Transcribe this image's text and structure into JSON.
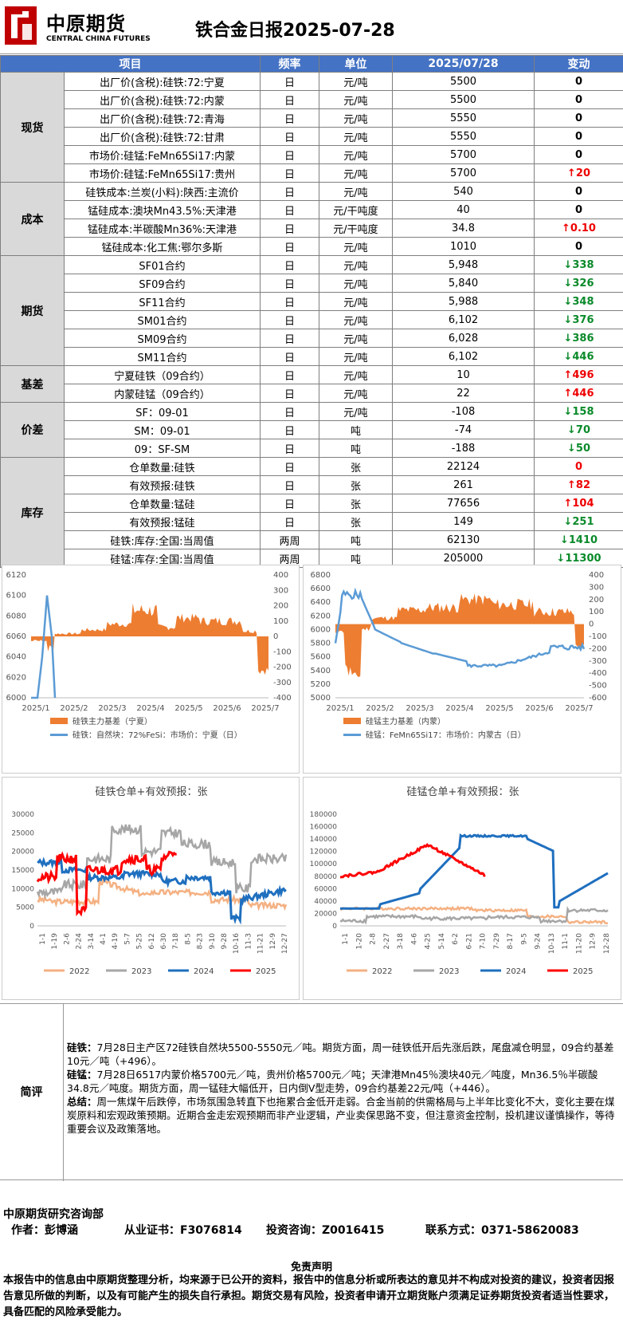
{
  "header": {
    "brand": "中原期货",
    "brand_en": "CENTRAL CHINA FUTURES",
    "title": "铁合金日报2025-07-28"
  },
  "table": {
    "headers": [
      "项目",
      "频率",
      "单位",
      "2025/07/28",
      "变动"
    ],
    "groups": [
      {
        "cat": "现货",
        "rows": [
          {
            "item": "出厂价(含税):硅铁:72:宁夏",
            "freq": "日",
            "unit": "元/吨",
            "value": "5500",
            "change": "0",
            "dir": "zero"
          },
          {
            "item": "出厂价(含税):硅铁:72:内蒙",
            "freq": "日",
            "unit": "元/吨",
            "value": "5500",
            "change": "0",
            "dir": "zero"
          },
          {
            "item": "出厂价(含税):硅铁:72:青海",
            "freq": "日",
            "unit": "元/吨",
            "value": "5550",
            "change": "0",
            "dir": "zero"
          },
          {
            "item": "出厂价(含税):硅铁:72:甘肃",
            "freq": "日",
            "unit": "元/吨",
            "value": "5550",
            "change": "0",
            "dir": "zero"
          },
          {
            "item": "市场价:硅锰:FeMn65Si17:内蒙",
            "freq": "日",
            "unit": "元/吨",
            "value": "5700",
            "change": "0",
            "dir": "zero"
          },
          {
            "item": "市场价:硅锰:FeMn65Si17:贵州",
            "freq": "日",
            "unit": "元/吨",
            "value": "5700",
            "change": "20",
            "dir": "up"
          }
        ]
      },
      {
        "cat": "成本",
        "rows": [
          {
            "item": "硅铁成本:兰炭(小料):陕西:主流价",
            "freq": "日",
            "unit": "元/吨",
            "value": "540",
            "change": "0",
            "dir": "zero"
          },
          {
            "item": "锰硅成本:澳块Mn43.5%:天津港",
            "freq": "日",
            "unit": "元/干吨度",
            "value": "40",
            "change": "0",
            "dir": "zero"
          },
          {
            "item": "锰硅成本:半碳酸Mn36%:天津港",
            "freq": "日",
            "unit": "元/干吨度",
            "value": "34.8",
            "change": "0.10",
            "dir": "up"
          },
          {
            "item": "锰硅成本:化工焦:鄂尔多斯",
            "freq": "日",
            "unit": "元/吨",
            "value": "1010",
            "change": "0",
            "dir": "zero"
          }
        ]
      },
      {
        "cat": "期货",
        "rows": [
          {
            "item": "SF01合约",
            "freq": "日",
            "unit": "元/吨",
            "value": "5,948",
            "change": "338",
            "dir": "dn"
          },
          {
            "item": "SF09合约",
            "freq": "日",
            "unit": "元/吨",
            "value": "5,840",
            "change": "326",
            "dir": "dn"
          },
          {
            "item": "SF11合约",
            "freq": "日",
            "unit": "元/吨",
            "value": "5,988",
            "change": "348",
            "dir": "dn"
          },
          {
            "item": "SM01合约",
            "freq": "日",
            "unit": "元/吨",
            "value": "6,102",
            "change": "376",
            "dir": "dn"
          },
          {
            "item": "SM09合约",
            "freq": "日",
            "unit": "元/吨",
            "value": "6,028",
            "change": "386",
            "dir": "dn"
          },
          {
            "item": "SM11合约",
            "freq": "日",
            "unit": "元/吨",
            "value": "6,102",
            "change": "446",
            "dir": "dn"
          }
        ]
      },
      {
        "cat": "基差",
        "rows": [
          {
            "item": "宁夏硅铁（09合约）",
            "freq": "日",
            "unit": "元/吨",
            "value": "10",
            "change": "496",
            "dir": "up"
          },
          {
            "item": "内蒙硅锰（09合约）",
            "freq": "日",
            "unit": "元/吨",
            "value": "22",
            "change": "446",
            "dir": "up"
          }
        ]
      },
      {
        "cat": "价差",
        "rows": [
          {
            "item": "SF：09-01",
            "freq": "日",
            "unit": "元/吨",
            "value": "-108",
            "change": "158",
            "dir": "dn"
          },
          {
            "item": "SM：09-01",
            "freq": "日",
            "unit": "吨",
            "value": "-74",
            "change": "70",
            "dir": "dn"
          },
          {
            "item": "09：SF-SM",
            "freq": "日",
            "unit": "吨",
            "value": "-188",
            "change": "50",
            "dir": "dn"
          }
        ]
      },
      {
        "cat": "库存",
        "rows": [
          {
            "item": "仓单数量:硅铁",
            "freq": "日",
            "unit": "张",
            "value": "22124",
            "change": "0",
            "dir": "zero-red"
          },
          {
            "item": "有效预报:硅铁",
            "freq": "日",
            "unit": "张",
            "value": "261",
            "change": "82",
            "dir": "up"
          },
          {
            "item": "仓单数量:锰硅",
            "freq": "日",
            "unit": "张",
            "value": "77656",
            "change": "104",
            "dir": "up"
          },
          {
            "item": "有效预报:锰硅",
            "freq": "日",
            "unit": "张",
            "value": "149",
            "change": "251",
            "dir": "dn"
          },
          {
            "item": "硅铁:库存:全国:当周值",
            "freq": "两周",
            "unit": "吨",
            "value": "62130",
            "change": "1410",
            "dir": "dn"
          },
          {
            "item": "硅锰:库存:全国:当周值",
            "freq": "两周",
            "unit": "吨",
            "value": "205000",
            "change": "11300",
            "dir": "dn"
          }
        ]
      }
    ]
  },
  "chart_data": [
    {
      "type": "area+line",
      "left_axis_ticks": [
        "6000",
        "6020",
        "6040",
        "6060",
        "6080",
        "6100",
        "6120"
      ],
      "right_axis_ticks": [
        "-400",
        "-300",
        "-200",
        "-100",
        "0",
        "100",
        "200",
        "300",
        "400"
      ],
      "x_ticks": [
        "2025/1",
        "2025/2",
        "2025/3",
        "2025/4",
        "2025/5",
        "2025/6",
        "2025/7"
      ],
      "legend": [
        "硅铁主力基差（宁夏）",
        "硅铁：自然块：72%FeSi：市场价：宁夏（日）"
      ],
      "colors": [
        "#ed7d31",
        "#5b9bd5"
      ]
    },
    {
      "type": "area+line",
      "left_axis_ticks": [
        "5000",
        "5200",
        "5400",
        "5600",
        "5800",
        "6000",
        "6200",
        "6400",
        "6600",
        "6800"
      ],
      "right_axis_ticks": [
        "-600",
        "-500",
        "-400",
        "-300",
        "-200",
        "-100",
        "0",
        "100",
        "200",
        "300",
        "400"
      ],
      "x_ticks": [
        "2025/1",
        "2025/2",
        "2025/3",
        "2025/4",
        "2025/5",
        "2025/6",
        "2025/7"
      ],
      "legend": [
        "硅锰主力基差（内蒙）",
        "硅锰：FeMn65Si17：市场价：内蒙古（日）"
      ],
      "colors": [
        "#ed7d31",
        "#5b9bd5"
      ]
    },
    {
      "type": "line",
      "title": "硅铁仓单+有效预报：张",
      "y_ticks": [
        "0",
        "5000",
        "10000",
        "15000",
        "20000",
        "25000",
        "30000"
      ],
      "x_ticks": [
        "1-1",
        "1-19",
        "2-6",
        "2-24",
        "3-14",
        "4-1",
        "4-19",
        "5-7",
        "5-25",
        "6-12",
        "6-30",
        "7-18",
        "8-5",
        "8-23",
        "9-10",
        "9-28",
        "10-16",
        "11-3",
        "11-21",
        "12-9",
        "12-27"
      ],
      "series": [
        {
          "name": "2022",
          "color": "#f4b183"
        },
        {
          "name": "2023",
          "color": "#a6a6a6"
        },
        {
          "name": "2024",
          "color": "#1f6fbf"
        },
        {
          "name": "2025",
          "color": "#ff0000"
        }
      ]
    },
    {
      "type": "line",
      "title": "硅锰仓单+有效预报：张",
      "y_ticks": [
        "0",
        "20000",
        "40000",
        "60000",
        "80000",
        "100000",
        "120000",
        "140000",
        "160000",
        "180000"
      ],
      "x_ticks": [
        "1-1",
        "1-20",
        "2-8",
        "2-27",
        "3-18",
        "4-6",
        "4-25",
        "5-14",
        "6-2",
        "6-21",
        "7-10",
        "7-29",
        "8-17",
        "9-5",
        "9-24",
        "10-13",
        "11-1",
        "11-20",
        "12-9",
        "12-28"
      ],
      "series": [
        {
          "name": "2022",
          "color": "#f4b183"
        },
        {
          "name": "2023",
          "color": "#a6a6a6"
        },
        {
          "name": "2024",
          "color": "#1f6fbf"
        },
        {
          "name": "2025",
          "color": "#ff0000"
        }
      ]
    }
  ],
  "comment": {
    "label": "简评",
    "p1_head": "硅铁：",
    "p1": "7月28日主产区72硅铁自然块5500-5550元／吨。期货方面，周一硅铁低开后先涨后跌，尾盘减仓明显，09合约基差10元／吨（+496）。",
    "p2_head": "硅锰：",
    "p2": "7月28日6517内蒙价格5700元／吨，贵州价格5700元／吨；天津港Mn45％澳块40元／吨度，Mn36.5％半碳酸34.8元／吨度。期货方面，周一锰硅大幅低开，日内倒V型走势，09合约基差22元/吨（+446）。",
    "p3_head": "总结：",
    "p3": "周一焦煤午后跌停，市场氛围急转直下也拖累合金低开走弱。合金当前的供需格局与上半年比变化不大，变化主要在煤炭原料和宏观政策预期。近期合金走宏观预期而非产业逻辑，产业卖保思路不变，但注意资金控制，投机建议谨慎操作，等待重要会议及政策落地。"
  },
  "footer": {
    "dept": "中原期货研究咨询部",
    "author": "作者：彭博涵",
    "cert": "从业证书：F3076814",
    "consult": "投资咨询：Z0016415",
    "contact": "联系方式：0371-58620083",
    "disc_title": "免责声明",
    "disc": "本报告中的信息由中原期货整理分析，均来源于已公开的资料，报告中的信息分析或所表达的意见并不构成对投资的建议，投资者因报告意见所做的判断，以及有可能产生的损失自行承担。期货交易有风险，投资者申请开立期货账户须满足证券期货投资者适当性要求，具备匹配的风险承受能力。"
  }
}
